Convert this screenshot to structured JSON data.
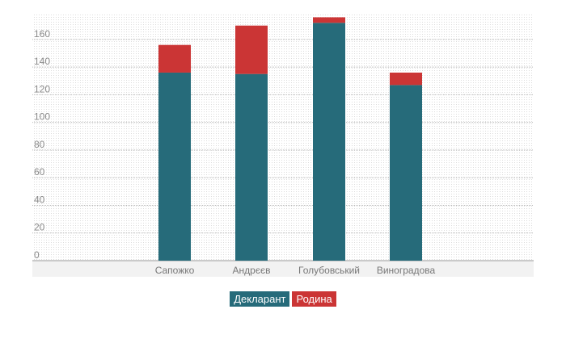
{
  "chart_data": {
    "type": "bar",
    "stacked": true,
    "categories": [
      "Сапожко",
      "Андрєєв",
      "Голубовський",
      "Виноградова"
    ],
    "series": [
      {
        "name": "Декларант",
        "color": "#266b7a",
        "values": [
          136,
          135,
          172,
          127
        ]
      },
      {
        "name": "Родина",
        "color": "#cb3535",
        "values": [
          20,
          35,
          4,
          9
        ]
      }
    ],
    "y_ticks": [
      0,
      20,
      40,
      60,
      80,
      100,
      120,
      140,
      160
    ],
    "ylim": [
      0,
      178
    ],
    "grid": true,
    "legend_position": "bottom-center"
  }
}
